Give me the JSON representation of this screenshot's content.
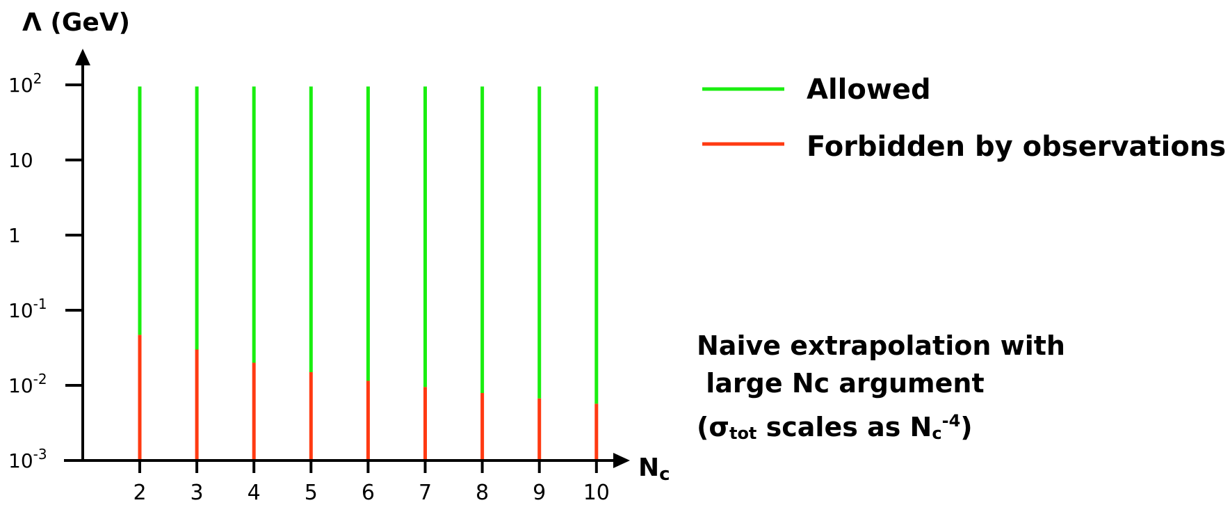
{
  "chart_data": {
    "type": "bar",
    "ylabel": "Λ (GeV)",
    "xlabel": {
      "base": "N",
      "sub": "c"
    },
    "yscale": "log",
    "ylim": [
      0.001,
      100
    ],
    "x": [
      2,
      3,
      4,
      5,
      6,
      7,
      8,
      9,
      10
    ],
    "yticks": [
      {
        "value": 0.001,
        "base": "10",
        "exp": "-3"
      },
      {
        "value": 0.01,
        "base": "10",
        "exp": "-2"
      },
      {
        "value": 0.1,
        "base": "10",
        "exp": "-1"
      },
      {
        "value": 1,
        "base": "1",
        "exp": ""
      },
      {
        "value": 10,
        "base": "10",
        "exp": ""
      },
      {
        "value": 100,
        "base": "10",
        "exp": "2"
      }
    ],
    "xticks": [
      "2",
      "3",
      "4",
      "5",
      "6",
      "7",
      "8",
      "9",
      "10"
    ],
    "series": [
      {
        "name": "Forbidden by observations",
        "color": "#ff3a12",
        "bottom": [
          0.001,
          0.001,
          0.001,
          0.001,
          0.001,
          0.001,
          0.001,
          0.001,
          0.001
        ],
        "top": [
          0.047,
          0.03,
          0.02,
          0.015,
          0.0115,
          0.0095,
          0.0079,
          0.0067,
          0.0057
        ]
      },
      {
        "name": "Allowed",
        "color": "#1aee10",
        "bottom": [
          0.047,
          0.03,
          0.02,
          0.015,
          0.0115,
          0.0095,
          0.0079,
          0.0067,
          0.0057
        ],
        "top": [
          95,
          95,
          95,
          95,
          95,
          95,
          95,
          95,
          95
        ]
      }
    ],
    "legend_position": "top-right",
    "annotation": {
      "line1": "Naive extrapolation with",
      "line2": " large Nc argument",
      "line3_open": "(σ",
      "line3_sub1": "tot",
      "line3_mid": " scales as N",
      "line3_sub2": "c",
      "line3_sup": "-4",
      "line3_close": ")"
    }
  }
}
